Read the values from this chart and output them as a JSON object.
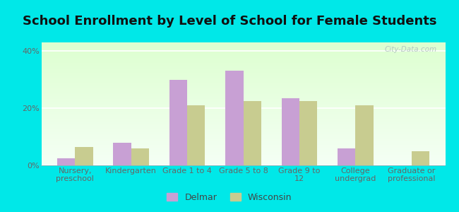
{
  "title": "School Enrollment by Level of School for Female Students",
  "categories": [
    "Nursery,\npreschool",
    "Kindergarten",
    "Grade 1 to 4",
    "Grade 5 to 8",
    "Grade 9 to\n12",
    "College\nundergrad",
    "Graduate or\nprofessional"
  ],
  "delmar_values": [
    2.5,
    8.0,
    30.0,
    33.0,
    23.5,
    6.0,
    0.0
  ],
  "wisconsin_values": [
    6.5,
    6.0,
    21.0,
    22.5,
    22.5,
    21.0,
    5.0
  ],
  "delmar_color": "#c8a0d4",
  "wisconsin_color": "#c8cc90",
  "ylim": [
    0,
    43
  ],
  "yticks": [
    0,
    20,
    40
  ],
  "ytick_labels": [
    "0%",
    "20%",
    "40%"
  ],
  "background_color": "#00e8e8",
  "plot_bg_top": "#f5fff5",
  "plot_bg_bottom": "#ddffd0",
  "title_fontsize": 13,
  "tick_fontsize": 8,
  "legend_fontsize": 9,
  "bar_width": 0.32,
  "watermark": "City-Data.com"
}
